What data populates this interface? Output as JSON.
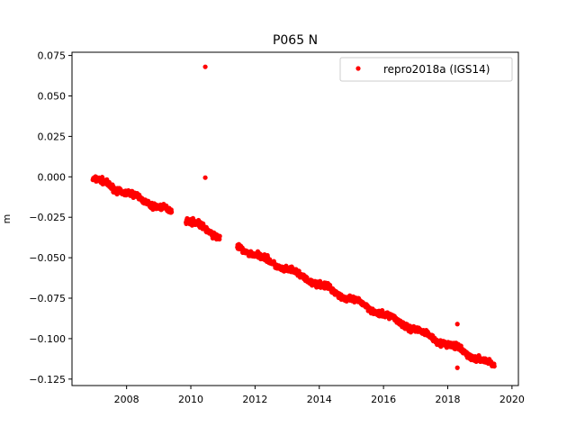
{
  "chart_data": {
    "type": "scatter",
    "title": "P065 N",
    "xlabel": "",
    "ylabel": "m",
    "xlim": [
      2006.3,
      2020.2
    ],
    "ylim": [
      -0.129,
      0.077
    ],
    "x_ticks": [
      2008,
      2010,
      2012,
      2014,
      2016,
      2018,
      2020
    ],
    "x_tick_labels": [
      "2008",
      "2010",
      "2012",
      "2014",
      "2016",
      "2018",
      "2020"
    ],
    "y_ticks": [
      0.075,
      0.05,
      0.025,
      0.0,
      -0.025,
      -0.05,
      -0.075,
      -0.1,
      -0.125
    ],
    "y_tick_labels": [
      "0.075",
      "0.050",
      "0.025",
      "0.000",
      "−0.025",
      "−0.050",
      "−0.075",
      "−0.100",
      "−0.125"
    ],
    "grid": false,
    "legend_position": "upper right",
    "series": [
      {
        "name": "repro2018a (IGS14)",
        "color": "#ff0000",
        "marker": "circle",
        "segments": [
          {
            "x_start": 2006.95,
            "x_end": 2009.4,
            "y_start": -0.001,
            "y_end": -0.022
          },
          {
            "x_start": 2009.85,
            "x_end": 2010.9,
            "y_start": -0.026,
            "y_end": -0.037
          },
          {
            "x_start": 2011.45,
            "x_end": 2019.45,
            "y_start": -0.043,
            "y_end": -0.117
          }
        ],
        "outliers": [
          {
            "x": 2010.45,
            "y": 0.068
          },
          {
            "x": 2010.45,
            "y": -0.0005
          },
          {
            "x": 2018.3,
            "y": -0.091
          },
          {
            "x": 2018.3,
            "y": -0.118
          }
        ]
      }
    ]
  }
}
